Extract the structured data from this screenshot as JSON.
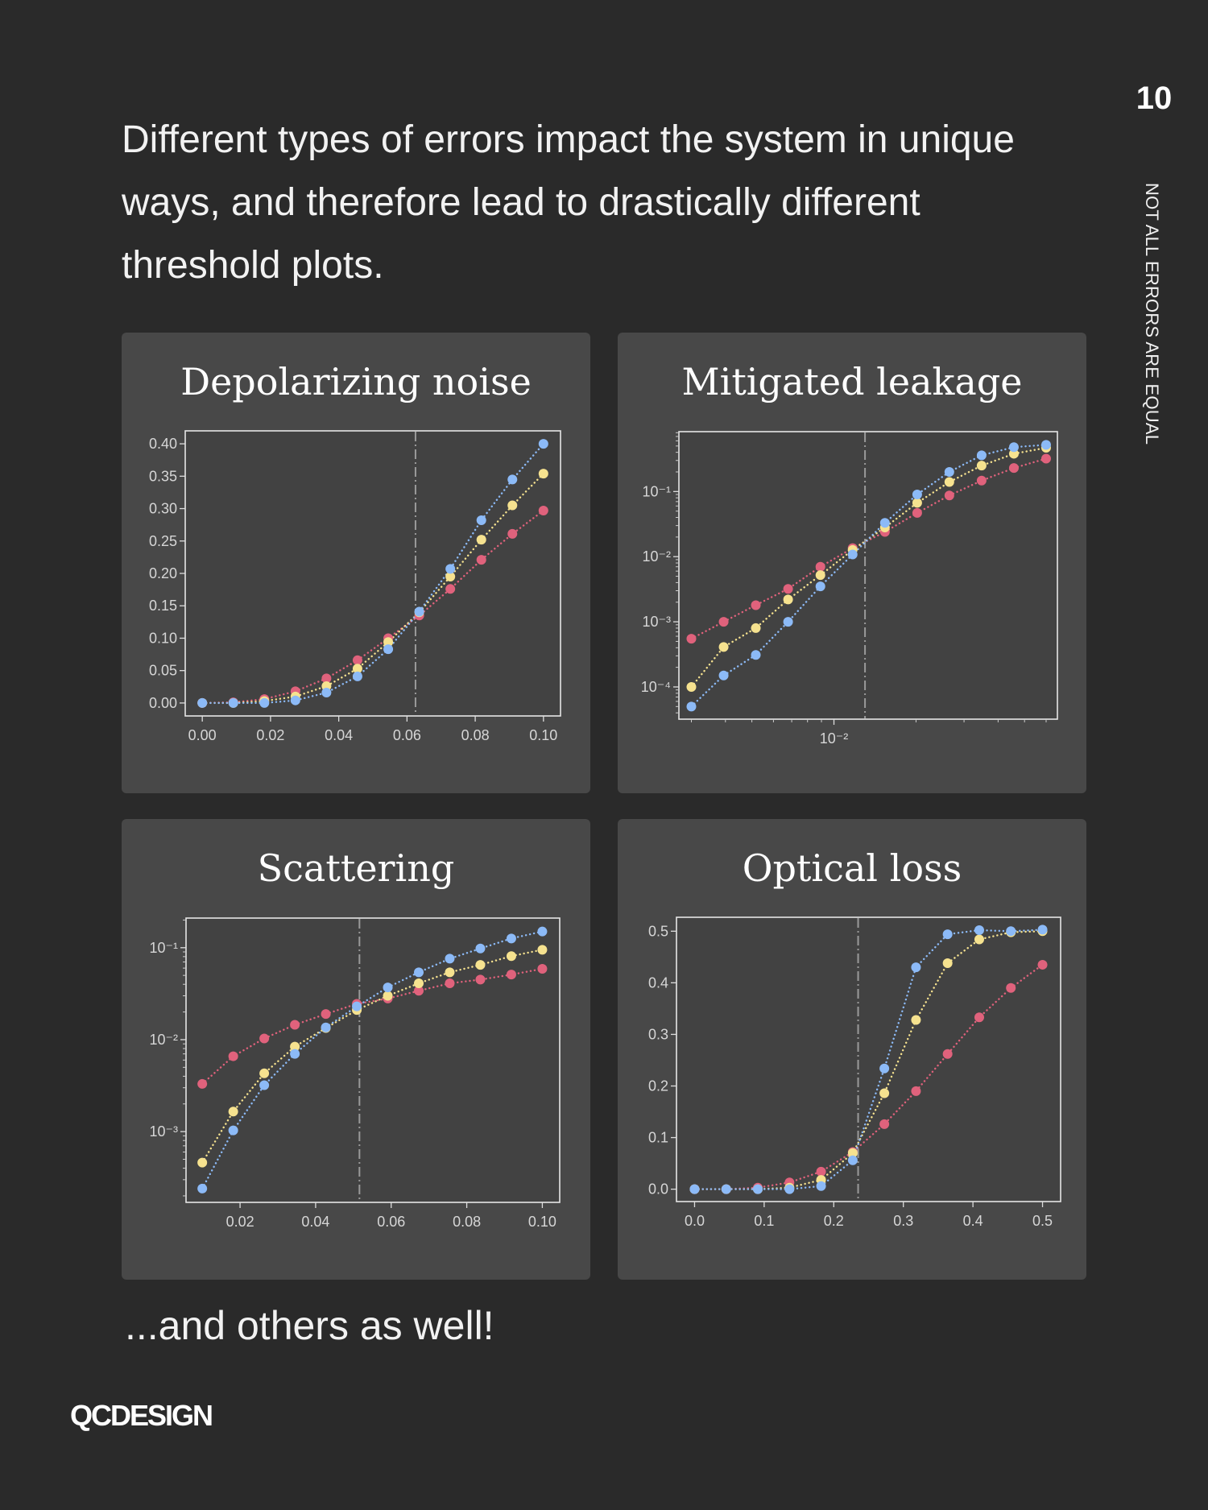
{
  "header": {
    "intro_text": "Different types of errors impact the system in unique ways, and therefore lead to drastically different threshold plots.",
    "page_number": "10",
    "side_label": "NOT ALL ERRORS ARE EQUAL"
  },
  "footer": {
    "outro_text": "...and others as well!",
    "logo": "QCDESIGN"
  },
  "colors": {
    "background": "#2a2a2a",
    "panel": "#484848",
    "red": "#e0627c",
    "yellow": "#f6e28f",
    "blue": "#8cbaf7",
    "threshold": "#9a9a9a"
  },
  "chart_data": [
    {
      "type": "line",
      "title": "Depolarizing noise",
      "xscale": "linear",
      "yscale": "linear",
      "xlim": [
        -0.005,
        0.105
      ],
      "ylim": [
        -0.02,
        0.42
      ],
      "xticks": [
        0,
        0.02,
        0.04,
        0.06,
        0.08,
        0.1
      ],
      "xtick_labels": [
        "0.00",
        "0.02",
        "0.04",
        "0.06",
        "0.08",
        "0.10"
      ],
      "yticks": [
        0,
        0.05,
        0.1,
        0.15,
        0.2,
        0.25,
        0.3,
        0.35,
        0.4
      ],
      "ytick_labels": [
        "0.00",
        "0.05",
        "0.10",
        "0.15",
        "0.20",
        "0.25",
        "0.30",
        "0.35",
        "0.40"
      ],
      "threshold": 0.0625,
      "x": [
        0,
        0.0091,
        0.0182,
        0.0273,
        0.0364,
        0.0455,
        0.0545,
        0.0636,
        0.0727,
        0.0818,
        0.0909,
        0.1
      ],
      "series": [
        {
          "color": "red",
          "values": [
            0,
            0.001,
            0.006,
            0.018,
            0.038,
            0.066,
            0.1,
            0.135,
            0.176,
            0.221,
            0.261,
            0.297
          ]
        },
        {
          "color": "yellow",
          "values": [
            0,
            0,
            0.003,
            0.01,
            0.026,
            0.053,
            0.094,
            0.14,
            0.195,
            0.252,
            0.305,
            0.354
          ]
        },
        {
          "color": "blue",
          "values": [
            0,
            0,
            0,
            0.004,
            0.016,
            0.041,
            0.083,
            0.141,
            0.207,
            0.282,
            0.345,
            0.4
          ]
        }
      ]
    },
    {
      "type": "line",
      "title": "Mitigated leakage",
      "xscale": "log",
      "yscale": "log",
      "xlim": [
        0.0027,
        0.066
      ],
      "ylim": [
        3.2e-05,
        0.83
      ],
      "xticks": [
        0.01
      ],
      "xtick_labels": [
        "10⁻²"
      ],
      "yticks": [
        0.0001,
        0.001,
        0.01,
        0.1
      ],
      "ytick_labels": [
        "10⁻⁴",
        "10⁻³",
        "10⁻²",
        "10⁻¹"
      ],
      "threshold": 0.013,
      "x": [
        0.003,
        0.00394,
        0.00517,
        0.00679,
        0.00892,
        0.01171,
        0.01538,
        0.0202,
        0.0265,
        0.0348,
        0.0457,
        0.06
      ],
      "series": [
        {
          "color": "red",
          "values": [
            0.00055,
            0.001,
            0.0018,
            0.0032,
            0.007,
            0.0135,
            0.024,
            0.047,
            0.087,
            0.147,
            0.23,
            0.32
          ]
        },
        {
          "color": "yellow",
          "values": [
            0.0001,
            0.00041,
            0.0008,
            0.0022,
            0.0052,
            0.0127,
            0.028,
            0.067,
            0.14,
            0.25,
            0.38,
            0.47
          ]
        },
        {
          "color": "blue",
          "values": [
            5e-05,
            0.00015,
            0.00031,
            0.001,
            0.0035,
            0.0108,
            0.033,
            0.09,
            0.2,
            0.36,
            0.48,
            0.52
          ]
        }
      ]
    },
    {
      "type": "line",
      "title": "Scattering",
      "xscale": "linear",
      "yscale": "log",
      "xlim": [
        0.0057,
        0.1046
      ],
      "ylim": [
        0.00017,
        0.21
      ],
      "xticks": [
        0.02,
        0.04,
        0.06,
        0.08,
        0.1
      ],
      "xtick_labels": [
        "0.02",
        "0.04",
        "0.06",
        "0.08",
        "0.10"
      ],
      "yticks": [
        0.001,
        0.01,
        0.1
      ],
      "ytick_labels": [
        "10⁻³",
        "10⁻²",
        "10⁻¹"
      ],
      "threshold": 0.0516,
      "x": [
        0.01,
        0.0182,
        0.0264,
        0.0345,
        0.0427,
        0.0509,
        0.0591,
        0.0673,
        0.0755,
        0.0836,
        0.0918,
        0.1
      ],
      "series": [
        {
          "color": "red",
          "values": [
            0.0033,
            0.0066,
            0.0103,
            0.0145,
            0.019,
            0.0245,
            0.028,
            0.034,
            0.041,
            0.045,
            0.051,
            0.059
          ]
        },
        {
          "color": "yellow",
          "values": [
            0.00046,
            0.00165,
            0.0043,
            0.0084,
            0.0134,
            0.021,
            0.03,
            0.041,
            0.054,
            0.065,
            0.081,
            0.095
          ]
        },
        {
          "color": "blue",
          "values": [
            0.00024,
            0.00103,
            0.0032,
            0.007,
            0.0136,
            0.023,
            0.037,
            0.054,
            0.076,
            0.098,
            0.126,
            0.15
          ]
        }
      ]
    },
    {
      "type": "line",
      "title": "Optical loss",
      "xscale": "linear",
      "yscale": "linear",
      "xlim": [
        -0.026,
        0.526
      ],
      "ylim": [
        -0.024,
        0.527
      ],
      "xticks": [
        0,
        0.1,
        0.2,
        0.3,
        0.4,
        0.5
      ],
      "xtick_labels": [
        "0.0",
        "0.1",
        "0.2",
        "0.3",
        "0.4",
        "0.5"
      ],
      "yticks": [
        0,
        0.1,
        0.2,
        0.3,
        0.4,
        0.5
      ],
      "ytick_labels": [
        "0.0",
        "0.1",
        "0.2",
        "0.3",
        "0.4",
        "0.5"
      ],
      "threshold": 0.235,
      "x": [
        0,
        0.0455,
        0.0909,
        0.1364,
        0.1818,
        0.2273,
        0.2727,
        0.3182,
        0.3636,
        0.4091,
        0.4545,
        0.5
      ],
      "series": [
        {
          "color": "red",
          "values": [
            0,
            0,
            0.003,
            0.013,
            0.034,
            0.072,
            0.126,
            0.19,
            0.262,
            0.333,
            0.39,
            0.435
          ]
        },
        {
          "color": "yellow",
          "values": [
            0,
            0,
            0,
            0.003,
            0.018,
            0.07,
            0.186,
            0.328,
            0.438,
            0.484,
            0.498,
            0.5
          ]
        },
        {
          "color": "blue",
          "values": [
            0,
            0,
            0,
            0,
            0.006,
            0.056,
            0.234,
            0.43,
            0.494,
            0.502,
            0.5,
            0.503
          ]
        }
      ]
    }
  ]
}
